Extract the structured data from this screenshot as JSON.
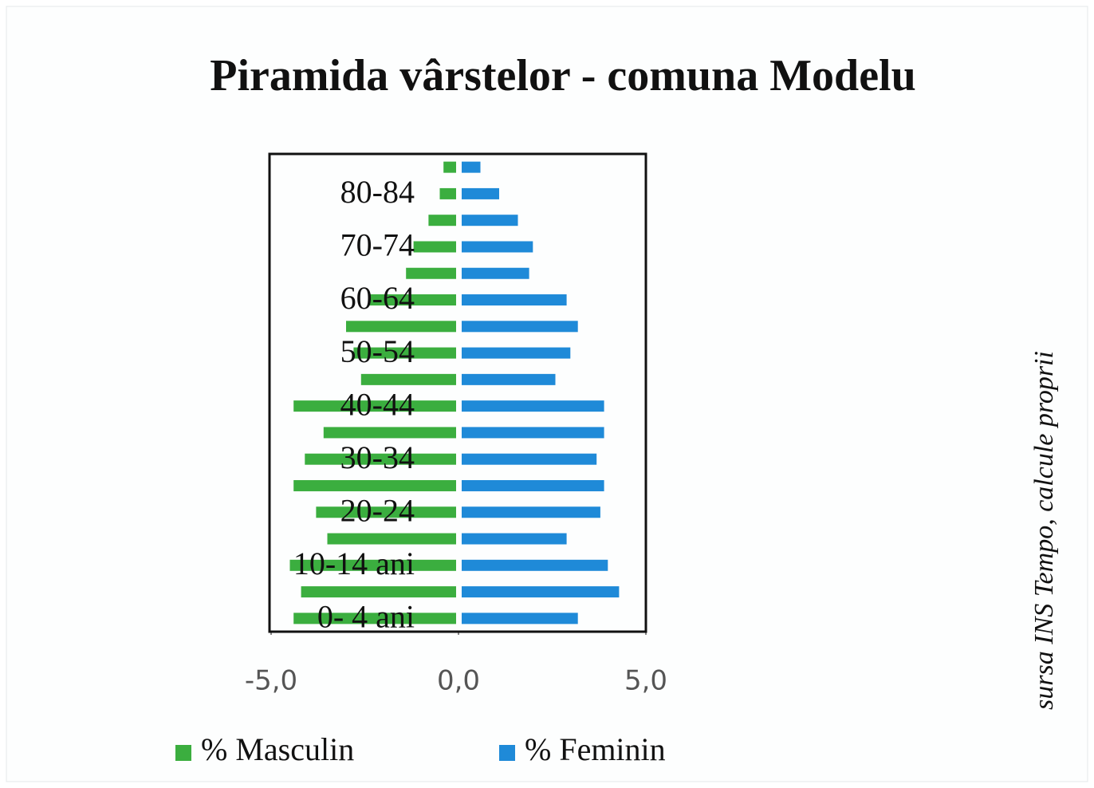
{
  "chart_data": {
    "type": "pyramid",
    "title": "Piramida vârstelor - comuna Modelu",
    "source": "sursa INS Tempo, calcule proprii",
    "categories": [
      "0- 4 ani",
      null,
      "10-14 ani",
      null,
      "20-24",
      null,
      "30-34",
      null,
      "40-44",
      null,
      "50-54",
      null,
      "60-64",
      null,
      "70-74",
      null,
      "80-84",
      null
    ],
    "series": [
      {
        "name": "% Masculin",
        "color": "#3bae3f",
        "values": [
          -4.4,
          -4.2,
          -4.5,
          -3.5,
          -3.8,
          -4.4,
          -4.1,
          -3.6,
          -4.4,
          -2.6,
          -2.8,
          -3.0,
          -2.4,
          -1.4,
          -1.2,
          -0.8,
          -0.5,
          -0.4
        ]
      },
      {
        "name": "% Feminin",
        "color": "#1f8ad8",
        "values": [
          3.1,
          4.2,
          3.9,
          2.8,
          3.7,
          3.8,
          3.6,
          3.8,
          3.8,
          2.5,
          2.9,
          3.1,
          2.8,
          1.8,
          1.9,
          1.5,
          1.0,
          0.5
        ]
      }
    ],
    "xlim": [
      -5,
      5
    ],
    "xticks": [
      {
        "value": -5,
        "label": "-5,0"
      },
      {
        "value": 0,
        "label": "0,0"
      },
      {
        "value": 5,
        "label": "5,0"
      }
    ],
    "legend": "bottom"
  }
}
